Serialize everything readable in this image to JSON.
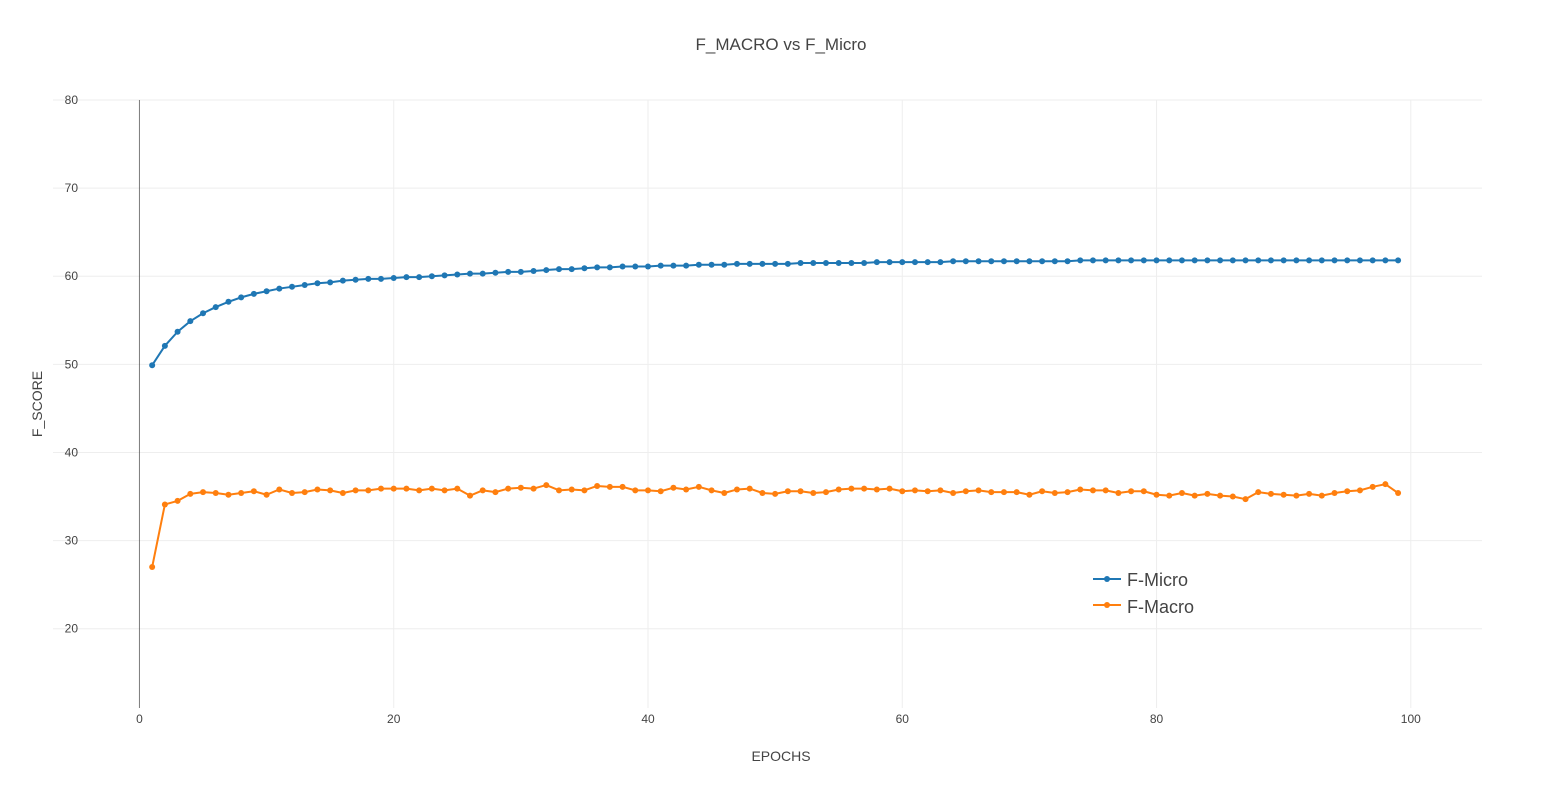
{
  "chart_data": {
    "type": "line",
    "title": "F_MACRO vs F_Micro",
    "xlabel": "EPOCHS",
    "ylabel": "F_SCORE",
    "xlim": [
      -6.8,
      105.6
    ],
    "ylim": [
      11,
      80
    ],
    "xticks": [
      0,
      20,
      40,
      60,
      80,
      100
    ],
    "yticks": [
      20,
      30,
      40,
      50,
      60,
      70,
      80
    ],
    "grid": true,
    "legend_position": "bottom-right",
    "x": [
      1,
      2,
      3,
      4,
      5,
      6,
      7,
      8,
      9,
      10,
      11,
      12,
      13,
      14,
      15,
      16,
      17,
      18,
      19,
      20,
      21,
      22,
      23,
      24,
      25,
      26,
      27,
      28,
      29,
      30,
      31,
      32,
      33,
      34,
      35,
      36,
      37,
      38,
      39,
      40,
      41,
      42,
      43,
      44,
      45,
      46,
      47,
      48,
      49,
      50,
      51,
      52,
      53,
      54,
      55,
      56,
      57,
      58,
      59,
      60,
      61,
      62,
      63,
      64,
      65,
      66,
      67,
      68,
      69,
      70,
      71,
      72,
      73,
      74,
      75,
      76,
      77,
      78,
      79,
      80,
      81,
      82,
      83,
      84,
      85,
      86,
      87,
      88,
      89,
      90,
      91,
      92,
      93,
      94,
      95,
      96,
      97,
      98,
      99
    ],
    "series": [
      {
        "name": "F-Micro",
        "color": "#1f77b4",
        "values": [
          49.9,
          52.1,
          53.7,
          54.9,
          55.8,
          56.5,
          57.1,
          57.6,
          58.0,
          58.3,
          58.6,
          58.8,
          59.0,
          59.2,
          59.3,
          59.5,
          59.6,
          59.7,
          59.7,
          59.8,
          59.9,
          59.9,
          60.0,
          60.1,
          60.2,
          60.3,
          60.3,
          60.4,
          60.5,
          60.5,
          60.6,
          60.7,
          60.8,
          60.8,
          60.9,
          61.0,
          61.0,
          61.1,
          61.1,
          61.1,
          61.2,
          61.2,
          61.2,
          61.3,
          61.3,
          61.3,
          61.4,
          61.4,
          61.4,
          61.4,
          61.4,
          61.5,
          61.5,
          61.5,
          61.5,
          61.5,
          61.5,
          61.6,
          61.6,
          61.6,
          61.6,
          61.6,
          61.6,
          61.7,
          61.7,
          61.7,
          61.7,
          61.7,
          61.7,
          61.7,
          61.7,
          61.7,
          61.7,
          61.8,
          61.8,
          61.8,
          61.8,
          61.8,
          61.8,
          61.8,
          61.8,
          61.8,
          61.8,
          61.8,
          61.8,
          61.8,
          61.8,
          61.8,
          61.8,
          61.8,
          61.8,
          61.8,
          61.8,
          61.8,
          61.8,
          61.8,
          61.8,
          61.8,
          61.8
        ]
      },
      {
        "name": "F-Macro",
        "color": "#ff7f0e",
        "values": [
          27.0,
          34.1,
          34.5,
          35.3,
          35.5,
          35.4,
          35.2,
          35.4,
          35.6,
          35.2,
          35.8,
          35.4,
          35.5,
          35.8,
          35.7,
          35.4,
          35.7,
          35.7,
          35.9,
          35.9,
          35.9,
          35.7,
          35.9,
          35.7,
          35.9,
          35.1,
          35.7,
          35.5,
          35.9,
          36.0,
          35.9,
          36.3,
          35.7,
          35.8,
          35.7,
          36.2,
          36.1,
          36.1,
          35.7,
          35.7,
          35.6,
          36.0,
          35.8,
          36.1,
          35.7,
          35.4,
          35.8,
          35.9,
          35.4,
          35.3,
          35.6,
          35.6,
          35.4,
          35.5,
          35.8,
          35.9,
          35.9,
          35.8,
          35.9,
          35.6,
          35.7,
          35.6,
          35.7,
          35.4,
          35.6,
          35.7,
          35.5,
          35.5,
          35.5,
          35.2,
          35.6,
          35.4,
          35.5,
          35.8,
          35.7,
          35.7,
          35.4,
          35.6,
          35.6,
          35.2,
          35.1,
          35.4,
          35.1,
          35.3,
          35.1,
          35.0,
          34.7,
          35.5,
          35.3,
          35.2,
          35.1,
          35.3,
          35.1,
          35.4,
          35.6,
          35.7,
          36.1,
          36.4,
          35.4
        ]
      }
    ]
  }
}
